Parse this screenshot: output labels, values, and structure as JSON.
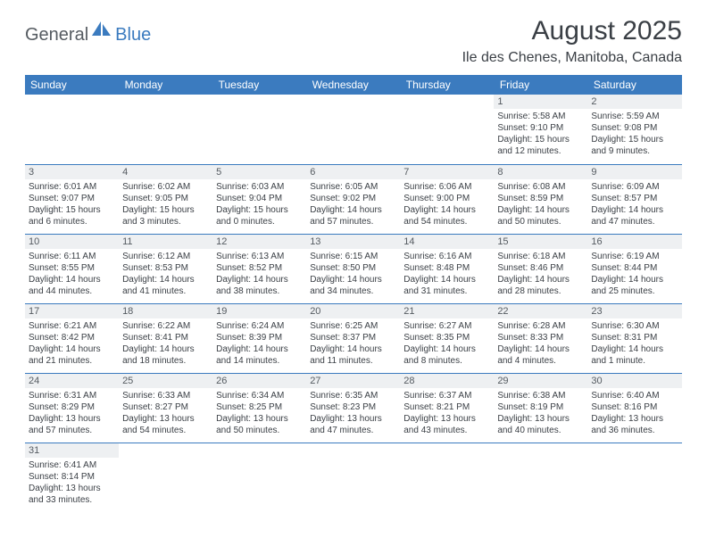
{
  "logo": {
    "part1": "General",
    "part2": "Blue"
  },
  "title": "August 2025",
  "location": "Ile des Chenes, Manitoba, Canada",
  "colors": {
    "header_bg": "#3b7bbf",
    "header_text": "#ffffff",
    "daynum_bg": "#eef0f2",
    "text": "#3a3f45",
    "logo_gray": "#555b61",
    "logo_blue": "#3b7bbf"
  },
  "daysOfWeek": [
    "Sunday",
    "Monday",
    "Tuesday",
    "Wednesday",
    "Thursday",
    "Friday",
    "Saturday"
  ],
  "startOffset": 5,
  "days": [
    {
      "n": 1,
      "sr": "5:58 AM",
      "ss": "9:10 PM",
      "dl": "15 hours and 12 minutes."
    },
    {
      "n": 2,
      "sr": "5:59 AM",
      "ss": "9:08 PM",
      "dl": "15 hours and 9 minutes."
    },
    {
      "n": 3,
      "sr": "6:01 AM",
      "ss": "9:07 PM",
      "dl": "15 hours and 6 minutes."
    },
    {
      "n": 4,
      "sr": "6:02 AM",
      "ss": "9:05 PM",
      "dl": "15 hours and 3 minutes."
    },
    {
      "n": 5,
      "sr": "6:03 AM",
      "ss": "9:04 PM",
      "dl": "15 hours and 0 minutes."
    },
    {
      "n": 6,
      "sr": "6:05 AM",
      "ss": "9:02 PM",
      "dl": "14 hours and 57 minutes."
    },
    {
      "n": 7,
      "sr": "6:06 AM",
      "ss": "9:00 PM",
      "dl": "14 hours and 54 minutes."
    },
    {
      "n": 8,
      "sr": "6:08 AM",
      "ss": "8:59 PM",
      "dl": "14 hours and 50 minutes."
    },
    {
      "n": 9,
      "sr": "6:09 AM",
      "ss": "8:57 PM",
      "dl": "14 hours and 47 minutes."
    },
    {
      "n": 10,
      "sr": "6:11 AM",
      "ss": "8:55 PM",
      "dl": "14 hours and 44 minutes."
    },
    {
      "n": 11,
      "sr": "6:12 AM",
      "ss": "8:53 PM",
      "dl": "14 hours and 41 minutes."
    },
    {
      "n": 12,
      "sr": "6:13 AM",
      "ss": "8:52 PM",
      "dl": "14 hours and 38 minutes."
    },
    {
      "n": 13,
      "sr": "6:15 AM",
      "ss": "8:50 PM",
      "dl": "14 hours and 34 minutes."
    },
    {
      "n": 14,
      "sr": "6:16 AM",
      "ss": "8:48 PM",
      "dl": "14 hours and 31 minutes."
    },
    {
      "n": 15,
      "sr": "6:18 AM",
      "ss": "8:46 PM",
      "dl": "14 hours and 28 minutes."
    },
    {
      "n": 16,
      "sr": "6:19 AM",
      "ss": "8:44 PM",
      "dl": "14 hours and 25 minutes."
    },
    {
      "n": 17,
      "sr": "6:21 AM",
      "ss": "8:42 PM",
      "dl": "14 hours and 21 minutes."
    },
    {
      "n": 18,
      "sr": "6:22 AM",
      "ss": "8:41 PM",
      "dl": "14 hours and 18 minutes."
    },
    {
      "n": 19,
      "sr": "6:24 AM",
      "ss": "8:39 PM",
      "dl": "14 hours and 14 minutes."
    },
    {
      "n": 20,
      "sr": "6:25 AM",
      "ss": "8:37 PM",
      "dl": "14 hours and 11 minutes."
    },
    {
      "n": 21,
      "sr": "6:27 AM",
      "ss": "8:35 PM",
      "dl": "14 hours and 8 minutes."
    },
    {
      "n": 22,
      "sr": "6:28 AM",
      "ss": "8:33 PM",
      "dl": "14 hours and 4 minutes."
    },
    {
      "n": 23,
      "sr": "6:30 AM",
      "ss": "8:31 PM",
      "dl": "14 hours and 1 minute."
    },
    {
      "n": 24,
      "sr": "6:31 AM",
      "ss": "8:29 PM",
      "dl": "13 hours and 57 minutes."
    },
    {
      "n": 25,
      "sr": "6:33 AM",
      "ss": "8:27 PM",
      "dl": "13 hours and 54 minutes."
    },
    {
      "n": 26,
      "sr": "6:34 AM",
      "ss": "8:25 PM",
      "dl": "13 hours and 50 minutes."
    },
    {
      "n": 27,
      "sr": "6:35 AM",
      "ss": "8:23 PM",
      "dl": "13 hours and 47 minutes."
    },
    {
      "n": 28,
      "sr": "6:37 AM",
      "ss": "8:21 PM",
      "dl": "13 hours and 43 minutes."
    },
    {
      "n": 29,
      "sr": "6:38 AM",
      "ss": "8:19 PM",
      "dl": "13 hours and 40 minutes."
    },
    {
      "n": 30,
      "sr": "6:40 AM",
      "ss": "8:16 PM",
      "dl": "13 hours and 36 minutes."
    },
    {
      "n": 31,
      "sr": "6:41 AM",
      "ss": "8:14 PM",
      "dl": "13 hours and 33 minutes."
    }
  ],
  "labels": {
    "sunrise": "Sunrise:",
    "sunset": "Sunset:",
    "daylight": "Daylight:"
  }
}
